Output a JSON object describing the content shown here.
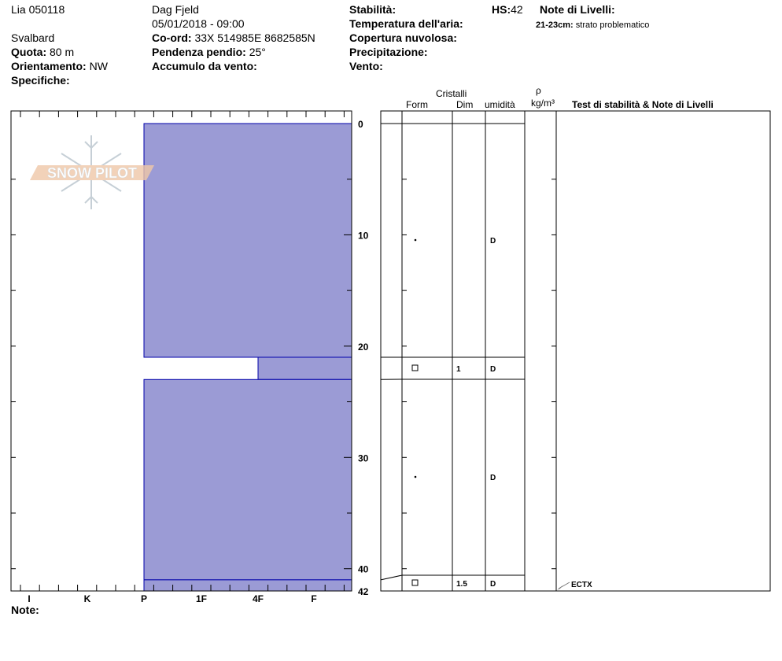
{
  "header": {
    "observer": "Lia 050118",
    "location_name": "Dag Fjeld",
    "datetime": "05/01/2018 - 09:00",
    "region": "Svalbard",
    "fields": {
      "quota": {
        "label": "Quota:",
        "value": "80 m"
      },
      "orientamento": {
        "label": "Orientamento:",
        "value": "NW"
      },
      "specifiche": {
        "label": "Specifiche:",
        "value": ""
      },
      "coord": {
        "label": "Co-ord:",
        "value": "33X 514985E 8682585N"
      },
      "pendenza": {
        "label": "Pendenza pendio:",
        "value": "25°"
      },
      "accumulo": {
        "label": "Accumulo da vento:",
        "value": ""
      },
      "stabilita": {
        "label": "Stabilità:",
        "value": ""
      },
      "temperatura": {
        "label": "Temperatura dell'aria:",
        "value": ""
      },
      "copertura": {
        "label": "Copertura nuvolosa:",
        "value": ""
      },
      "precipitazione": {
        "label": "Precipitazione:",
        "value": ""
      },
      "vento": {
        "label": "Vento:",
        "value": ""
      },
      "hs": {
        "label": "HS:",
        "value": "42"
      }
    },
    "layer_notes_title": "Note di Livelli:",
    "layer_notes": [
      {
        "range": "21-23cm:",
        "text": "strato problematico"
      }
    ]
  },
  "logo": {
    "text": "SNOW PILOT"
  },
  "table_headers": {
    "cristalli": "Cristalli",
    "form": "Form",
    "dim": "Dim",
    "umidita": "umidità",
    "rho": "ρ",
    "density": "kg/m³",
    "tests": "Test di stabilità & Note di Livelli"
  },
  "note_label": "Note:",
  "colors": {
    "layer_fill": "#9b9bd5",
    "layer_stroke": "#0000aa"
  },
  "chart_data": {
    "type": "bar",
    "hardness_axis": [
      "I",
      "K",
      "P",
      "1F",
      "4F",
      "F"
    ],
    "depth_ticks": [
      "0",
      "10",
      "20",
      "30",
      "40",
      "42"
    ],
    "depth_range": [
      0,
      42
    ],
    "layers": [
      {
        "top": 0,
        "bottom": 21,
        "hardness": "P",
        "form": "dot",
        "dim": "",
        "moisture": "D"
      },
      {
        "top": 21,
        "bottom": 23,
        "hardness": "4F",
        "form": "square",
        "dim": "1",
        "moisture": "D"
      },
      {
        "top": 23,
        "bottom": 41,
        "hardness": "P",
        "form": "dot",
        "dim": "",
        "moisture": "D"
      },
      {
        "top": 41,
        "bottom": 42,
        "hardness": "P",
        "form": "square",
        "dim": "1.5",
        "moisture": "D"
      }
    ],
    "tests": [
      {
        "depth": 42,
        "label": "ECTX"
      }
    ]
  }
}
